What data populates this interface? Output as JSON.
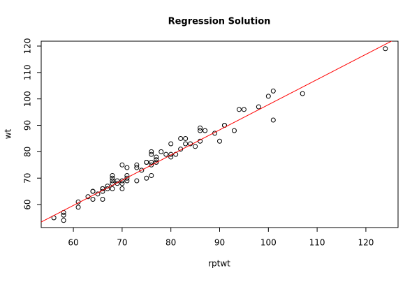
{
  "chart_data": {
    "type": "scatter",
    "title": "Regression Solution",
    "x_label": "rptwt",
    "y_label": "wt",
    "x": [
      56,
      58,
      58,
      58,
      61,
      61,
      63,
      64,
      64,
      64,
      65,
      66,
      66,
      66,
      66,
      67,
      67,
      68,
      68,
      68,
      68,
      68,
      69,
      69,
      70,
      70,
      70,
      70,
      71,
      71,
      71,
      71,
      73,
      73,
      73,
      74,
      75,
      75,
      75,
      76,
      76,
      76,
      76,
      76,
      77,
      77,
      77,
      78,
      79,
      80,
      80,
      80,
      81,
      82,
      82,
      83,
      83,
      84,
      85,
      86,
      86,
      86,
      87,
      89,
      90,
      91,
      91,
      93,
      94,
      95,
      98,
      100,
      101,
      101,
      107,
      124
    ],
    "y": [
      55,
      57,
      56,
      54,
      61,
      59,
      63,
      65,
      65,
      62,
      64,
      66,
      66,
      65,
      62,
      66,
      67,
      68,
      69,
      70,
      71,
      66,
      68,
      69,
      75,
      69,
      68,
      66,
      74,
      71,
      70,
      69,
      75,
      74,
      69,
      73,
      76,
      76,
      70,
      80,
      79,
      76,
      75,
      71,
      78,
      76,
      77,
      80,
      79,
      83,
      79,
      78,
      79,
      81,
      85,
      83,
      85,
      83,
      82,
      89,
      88,
      84,
      88,
      87,
      84,
      90,
      90,
      88,
      96,
      96,
      97,
      101,
      103,
      92,
      102,
      119
    ],
    "regression": {
      "intercept": 2.5,
      "slope": 0.953
    },
    "color": "#000000",
    "line_color": "#ff0000",
    "xlim": [
      53.4,
      126.6
    ],
    "ylim": [
      51.3,
      121.85
    ],
    "xticks": [
      60,
      70,
      80,
      90,
      100,
      110,
      120
    ],
    "yticks": [
      60,
      70,
      80,
      90,
      100,
      110,
      120
    ]
  }
}
